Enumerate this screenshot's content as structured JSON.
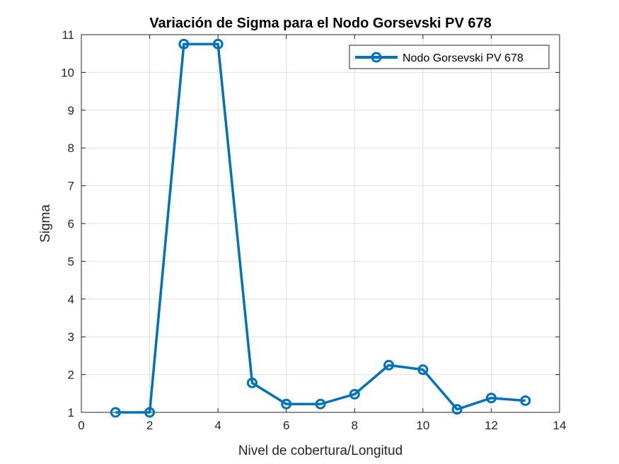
{
  "chart_data": {
    "type": "line",
    "title": "Variación de Sigma para el Nodo Gorsevski PV 678",
    "xlabel": "Nivel de cobertura/Longitud",
    "ylabel": "Sigma",
    "xlim": [
      0,
      14
    ],
    "ylim": [
      1,
      11
    ],
    "xticks": [
      0,
      2,
      4,
      6,
      8,
      10,
      12,
      14
    ],
    "yticks": [
      1,
      2,
      3,
      4,
      5,
      6,
      7,
      8,
      9,
      10,
      11
    ],
    "grid": true,
    "legend_position": "top-right",
    "series": [
      {
        "name": "Nodo Gorsevski PV 678",
        "color": "#0072BD",
        "marker": "circle",
        "x": [
          1,
          2,
          3,
          4,
          5,
          6,
          7,
          8,
          9,
          10,
          11,
          12,
          13
        ],
        "y": [
          1.0,
          1.0,
          10.75,
          10.75,
          1.78,
          1.22,
          1.22,
          1.48,
          2.25,
          2.13,
          1.08,
          1.38,
          1.31
        ]
      }
    ]
  }
}
